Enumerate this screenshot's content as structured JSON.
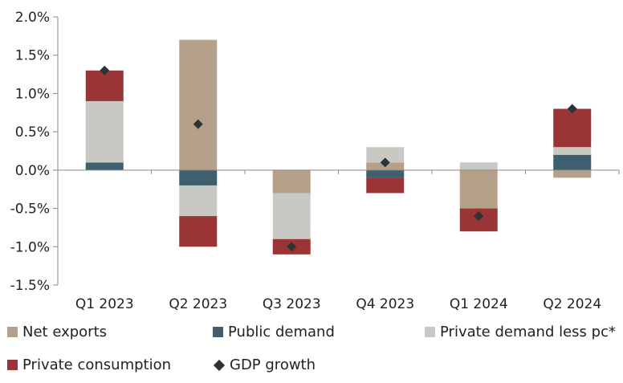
{
  "chart_data": {
    "type": "bar",
    "stacked": true,
    "categories": [
      "Q1 2023",
      "Q2 2023",
      "Q3 2023",
      "Q4 2023",
      "Q1 2024",
      "Q2 2024"
    ],
    "series": [
      {
        "name": "Net exports",
        "color": "#b5a08a",
        "values": [
          0.0,
          1.7,
          -0.3,
          0.1,
          -0.5,
          -0.1
        ]
      },
      {
        "name": "Public demand",
        "color": "#3d5f6e",
        "values": [
          0.1,
          -0.2,
          0.0,
          -0.1,
          0.0,
          0.2
        ]
      },
      {
        "name": "Private demand less pc*",
        "color": "#c9c9c4",
        "values": [
          0.8,
          -0.4,
          -0.6,
          0.2,
          0.1,
          0.1
        ]
      },
      {
        "name": "Private consumption",
        "color": "#9b3535",
        "values": [
          0.4,
          -0.4,
          -0.2,
          -0.2,
          -0.3,
          0.5
        ]
      }
    ],
    "markers": {
      "name": "GDP growth",
      "color": "#2e3338",
      "values": [
        1.3,
        0.6,
        -1.0,
        0.1,
        -0.6,
        0.8
      ]
    },
    "ylim": [
      -1.5,
      2.0
    ],
    "yticks": [
      "2.0%",
      "1.5%",
      "1.0%",
      "0.5%",
      "0.0%",
      "-0.5%",
      "-1.0%",
      "-1.5%"
    ],
    "ytick_values": [
      2.0,
      1.5,
      1.0,
      0.5,
      0.0,
      -0.5,
      -1.0,
      -1.5
    ],
    "title": "",
    "xlabel": "",
    "ylabel": "",
    "legend_position": "bottom"
  },
  "legend": {
    "net_exports": "Net exports",
    "public_demand": "Public demand",
    "private_demand": "Private demand less pc*",
    "private_consumption": "Private consumption",
    "gdp_growth": "GDP growth"
  },
  "colors": {
    "net_exports": "#b5a08a",
    "public_demand": "#3d5f6e",
    "private_demand": "#c9c9c4",
    "private_consumption": "#9b3535",
    "gdp_growth": "#2e3338"
  }
}
